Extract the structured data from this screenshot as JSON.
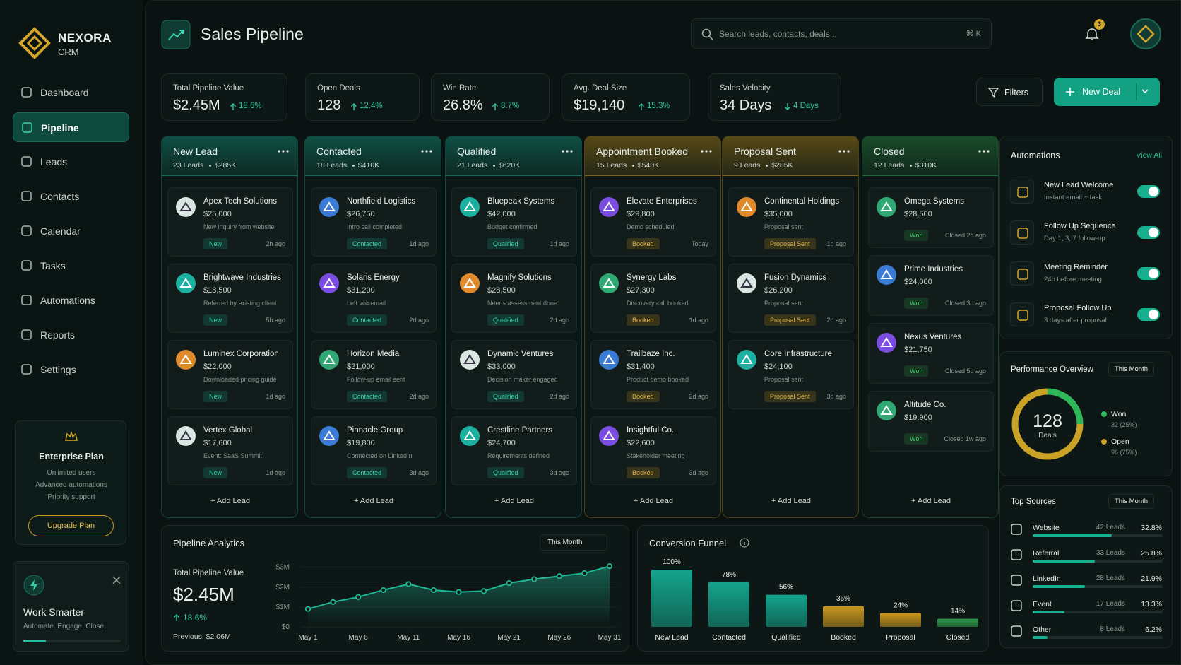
{
  "sidebar": {
    "brand": "NEXORA",
    "brand_sub": "CRM",
    "nav": [
      "Dashboard",
      "Pipeline",
      "Leads",
      "Contacts",
      "Calendar",
      "Tasks",
      "Automations",
      "Reports",
      "Settings"
    ],
    "plan": {
      "title": "Enterprise Plan",
      "features": [
        "Unlimited users",
        "Advanced automations",
        "Priority support"
      ],
      "button": "Upgrade Plan"
    },
    "promo": {
      "title": "Work Smarter",
      "text": "Automate. Engage. Close."
    }
  },
  "header": {
    "title": "Sales Pipeline",
    "search": "Search leads, contacts, deals...",
    "shortcut": "⌘ K",
    "notifications": 3
  },
  "kpis": [
    {
      "label": "Total Pipeline Value",
      "value": "$2.45M",
      "change": "18.6%",
      "trend": "up"
    },
    {
      "label": "Open Deals",
      "value": "128",
      "change": "12.4%",
      "trend": "up"
    },
    {
      "label": "Win Rate",
      "value": "26.8%",
      "change": "8.7%",
      "trend": "up"
    },
    {
      "label": "Avg. Deal Size",
      "value": "$19,140",
      "change": "15.3%",
      "trend": "up"
    },
    {
      "label": "Sales Velocity",
      "value": "34 Days",
      "change": "4 Days",
      "trend": "down"
    }
  ],
  "actions": {
    "filters": "Filters",
    "new_deal": "New Deal"
  },
  "board": {
    "add_label": "+ Add Lead",
    "columns": [
      {
        "name": "New Lead",
        "count": "23 Leads",
        "total": "$285K",
        "color": "#14a58c",
        "cards": [
          {
            "company": "Apex Tech Solutions",
            "amount": "$25,000",
            "note": "New inquiry from website",
            "tag": "New",
            "time": "2h ago"
          },
          {
            "company": "Brightwave Industries",
            "amount": "$18,500",
            "note": "Referred by existing client",
            "tag": "New",
            "time": "5h ago"
          },
          {
            "company": "Luminex Corporation",
            "amount": "$22,000",
            "note": "Downloaded pricing guide",
            "tag": "New",
            "time": "1d ago"
          },
          {
            "company": "Vertex Global",
            "amount": "$17,600",
            "note": "Event: SaaS Summit",
            "tag": "New",
            "time": "1d ago"
          }
        ]
      },
      {
        "name": "Contacted",
        "count": "18 Leads",
        "total": "$410K",
        "color": "#14a58c",
        "cards": [
          {
            "company": "Northfield Logistics",
            "amount": "$26,750",
            "note": "Intro call completed",
            "tag": "Contacted",
            "time": "1d ago"
          },
          {
            "company": "Solaris Energy",
            "amount": "$31,200",
            "note": "Left voicemail",
            "tag": "Contacted",
            "time": "2d ago"
          },
          {
            "company": "Horizon Media",
            "amount": "$21,000",
            "note": "Follow-up email sent",
            "tag": "Contacted",
            "time": "2d ago"
          },
          {
            "company": "Pinnacle Group",
            "amount": "$19,800",
            "note": "Connected on LinkedIn",
            "tag": "Contacted",
            "time": "3d ago"
          }
        ]
      },
      {
        "name": "Qualified",
        "count": "21 Leads",
        "total": "$620K",
        "color": "#14a58c",
        "cards": [
          {
            "company": "Bluepeak Systems",
            "amount": "$42,000",
            "note": "Budget confirmed",
            "tag": "Qualified",
            "time": "1d ago"
          },
          {
            "company": "Magnify Solutions",
            "amount": "$28,500",
            "note": "Needs assessment done",
            "tag": "Qualified",
            "time": "2d ago"
          },
          {
            "company": "Dynamic Ventures",
            "amount": "$33,000",
            "note": "Decision maker engaged",
            "tag": "Qualified",
            "time": "2d ago"
          },
          {
            "company": "Crestline Partners",
            "amount": "$24,700",
            "note": "Requirements defined",
            "tag": "Qualified",
            "time": "3d ago"
          }
        ]
      },
      {
        "name": "Appointment Booked",
        "count": "15 Leads",
        "total": "$540K",
        "color": "#c9971c",
        "cards": [
          {
            "company": "Elevate Enterprises",
            "amount": "$29,800",
            "note": "Demo scheduled",
            "tag": "Booked",
            "time": "Today"
          },
          {
            "company": "Synergy Labs",
            "amount": "$27,300",
            "note": "Discovery call booked",
            "tag": "Booked",
            "time": "1d ago"
          },
          {
            "company": "Trailbaze Inc.",
            "amount": "$31,400",
            "note": "Product demo booked",
            "tag": "Booked",
            "time": "2d ago"
          },
          {
            "company": "Insightful Co.",
            "amount": "$22,600",
            "note": "Stakeholder meeting",
            "tag": "Booked",
            "time": "3d ago"
          }
        ]
      },
      {
        "name": "Proposal Sent",
        "count": "9 Leads",
        "total": "$285K",
        "color": "#c9971c",
        "cards": [
          {
            "company": "Continental Holdings",
            "amount": "$35,000",
            "note": "Proposal sent",
            "tag": "Proposal Sent",
            "time": "1d ago"
          },
          {
            "company": "Fusion Dynamics",
            "amount": "$26,200",
            "note": "Proposal sent",
            "tag": "Proposal Sent",
            "time": "2d ago"
          },
          {
            "company": "Core Infrastructure",
            "amount": "$24,100",
            "note": "Proposal sent",
            "tag": "Proposal Sent",
            "time": "3d ago"
          }
        ]
      },
      {
        "name": "Closed",
        "count": "12 Leads",
        "total": "$310K",
        "color": "#2e9e4a",
        "cards": [
          {
            "company": "Omega Systems",
            "amount": "$28,500",
            "tag": "Won",
            "time": "Closed 2d ago"
          },
          {
            "company": "Prime Industries",
            "amount": "$24,000",
            "tag": "Won",
            "time": "Closed 3d ago"
          },
          {
            "company": "Nexus Ventures",
            "amount": "$21,750",
            "tag": "Won",
            "time": "Closed 5d ago"
          },
          {
            "company": "Altitude Co.",
            "amount": "$19,900",
            "tag": "Won",
            "time": "Closed 1w ago"
          }
        ]
      }
    ]
  },
  "automations": {
    "title": "Automations",
    "link": "View All",
    "items": [
      {
        "title": "New Lead Welcome",
        "sub": "Instant email + task",
        "enabled": true
      },
      {
        "title": "Follow Up Sequence",
        "sub": "Day 1, 3, 7 follow-up",
        "enabled": true
      },
      {
        "title": "Meeting Reminder",
        "sub": "24h before meeting",
        "enabled": true
      },
      {
        "title": "Proposal Follow Up",
        "sub": "3 days after proposal",
        "enabled": true
      }
    ]
  },
  "performance": {
    "title": "Performance Overview",
    "period": "This Month",
    "center_value": "128",
    "center_label": "Deals",
    "chart": {
      "type": "pie",
      "series": [
        {
          "name": "Won",
          "color": "#2fb85a",
          "value": 32,
          "value_label": "32 (25%)"
        },
        {
          "name": "Open",
          "color": "#c9a227",
          "value": 96,
          "value_label": "96 (75%)"
        }
      ]
    }
  },
  "sources": {
    "title": "Top Sources",
    "period": "This Month",
    "items": [
      {
        "name": "Website",
        "leads": "42 Leads",
        "share": 32.8,
        "share_label": "32.8%"
      },
      {
        "name": "Referral",
        "leads": "33 Leads",
        "share": 25.8,
        "share_label": "25.8%"
      },
      {
        "name": "LinkedIn",
        "leads": "28 Leads",
        "share": 21.9,
        "share_label": "21.9%"
      },
      {
        "name": "Event",
        "leads": "17 Leads",
        "share": 13.3,
        "share_label": "13.3%"
      },
      {
        "name": "Other",
        "leads": "8 Leads",
        "share": 6.2,
        "share_label": "6.2%"
      }
    ]
  },
  "analytics": {
    "title": "Pipeline Analytics",
    "period": "This Month",
    "kpi_label": "Total Pipeline Value",
    "kpi_value": "$2.45M",
    "kpi_change": "18.6%",
    "previous": "Previous: $2.06M",
    "chart": {
      "type": "line",
      "color": "#1fb896",
      "x": [
        1,
        3.5,
        6,
        8.5,
        11,
        13.5,
        16,
        18.5,
        21,
        23.5,
        26,
        28.5,
        31
      ],
      "values": [
        0.9,
        1.25,
        1.5,
        1.85,
        2.15,
        1.85,
        1.75,
        1.8,
        2.2,
        2.4,
        2.55,
        2.7,
        3.05
      ],
      "xlim": [
        1,
        31
      ],
      "xticks": [
        {
          "value": 1,
          "label": "May 1"
        },
        {
          "value": 6,
          "label": "May 6"
        },
        {
          "value": 11,
          "label": "May 11"
        },
        {
          "value": 16,
          "label": "May 16"
        },
        {
          "value": 21,
          "label": "May 21"
        },
        {
          "value": 26,
          "label": "May 26"
        },
        {
          "value": 31,
          "label": "May 31"
        }
      ],
      "ylim": [
        0,
        3.2
      ],
      "yticks": [
        {
          "value": 0,
          "label": "$0"
        },
        {
          "value": 1,
          "label": "$1M"
        },
        {
          "value": 2,
          "label": "$2M"
        },
        {
          "value": 3,
          "label": "$3M"
        }
      ]
    }
  },
  "funnel": {
    "title": "Conversion Funnel",
    "chart": {
      "type": "bar",
      "categories": [
        "New Lead",
        "Contacted",
        "Qualified",
        "Booked",
        "Proposal",
        "Closed"
      ],
      "values": [
        100,
        78,
        56,
        36,
        24,
        14
      ],
      "value_labels": [
        "100%",
        "78%",
        "56%",
        "36%",
        "24%",
        "14%"
      ],
      "colors": [
        "#14a58c",
        "#14a58c",
        "#14a58c",
        "#c9971c",
        "#c9971c",
        "#2e9e4a"
      ],
      "ylim": [
        0,
        100
      ]
    }
  }
}
